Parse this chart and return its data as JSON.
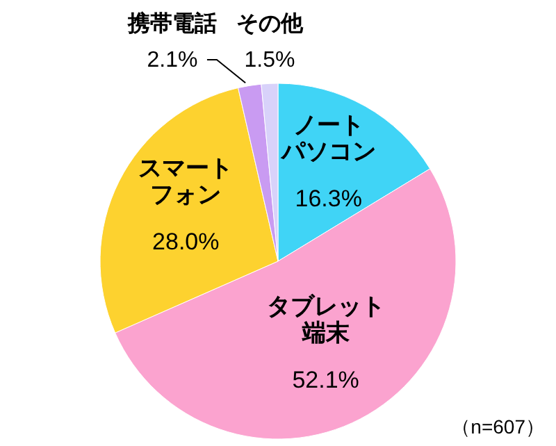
{
  "chart_data": {
    "type": "pie",
    "categories": [
      "ノートパソコン",
      "タブレット端末",
      "スマートフォン",
      "携帯電話",
      "その他"
    ],
    "values": [
      16.3,
      52.1,
      28.0,
      2.1,
      1.5
    ],
    "value_labels": [
      "16.3%",
      "52.1%",
      "28.0%",
      "2.1%",
      "1.5%"
    ],
    "colors": [
      "#40d4f6",
      "#fba3cf",
      "#fdd22f",
      "#c99bf2",
      "#d8d2fa"
    ],
    "annotations": [
      "（n=607）"
    ]
  }
}
